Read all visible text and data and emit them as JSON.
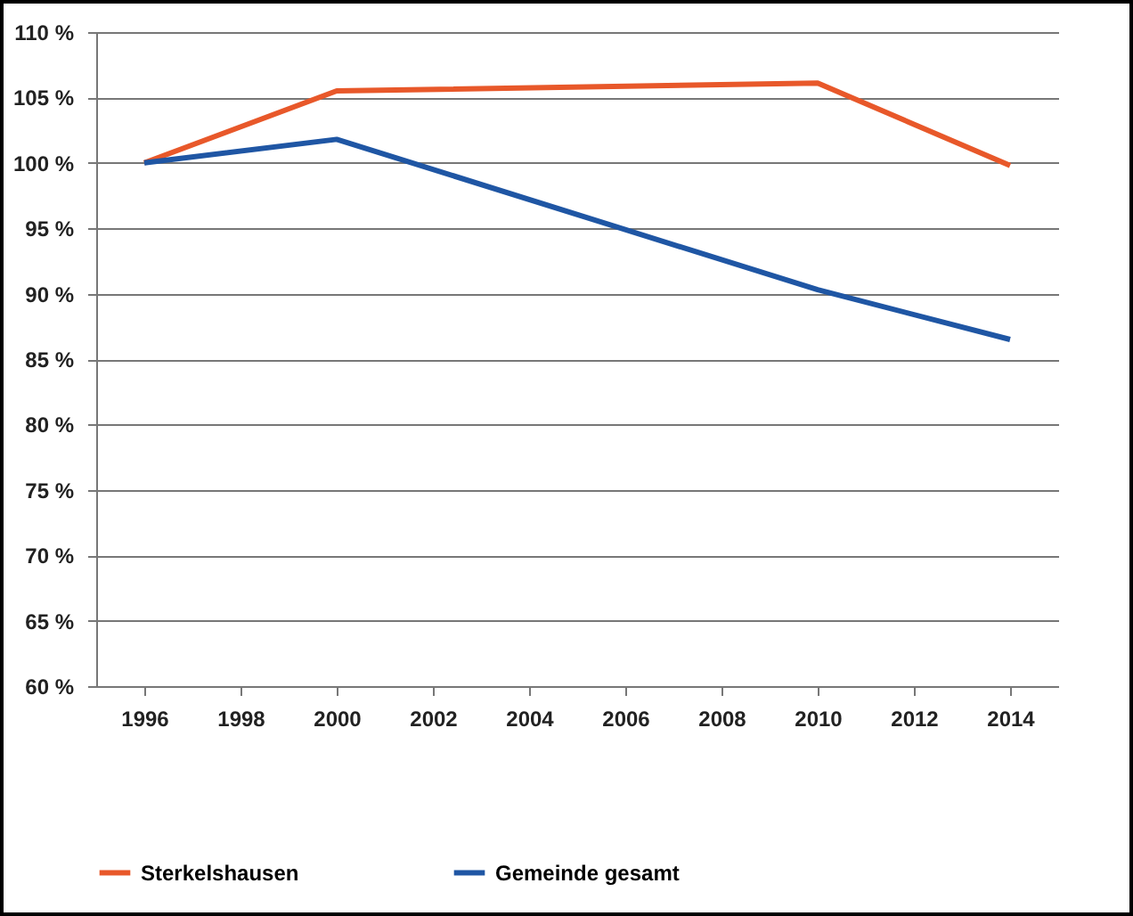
{
  "chart_data": {
    "type": "line",
    "x": [
      1996,
      2000,
      2010,
      2014
    ],
    "series": [
      {
        "name": "Sterkelshausen",
        "color": "#e8582a",
        "values": [
          100,
          105.5,
          106.1,
          99.8
        ]
      },
      {
        "name": "Gemeinde gesamt",
        "color": "#1f56a4",
        "values": [
          100,
          101.8,
          90.3,
          86.5
        ]
      }
    ],
    "xlim": [
      1995,
      2015
    ],
    "xticks": [
      1996,
      1998,
      2000,
      2002,
      2004,
      2006,
      2008,
      2010,
      2012,
      2014
    ],
    "ylim": [
      60,
      110
    ],
    "yticks": [
      {
        "value": 60,
        "label": "60 %"
      },
      {
        "value": 65,
        "label": "65 %"
      },
      {
        "value": 70,
        "label": "70 %"
      },
      {
        "value": 75,
        "label": "75 %"
      },
      {
        "value": 80,
        "label": "80 %"
      },
      {
        "value": 85,
        "label": "85 %"
      },
      {
        "value": 90,
        "label": "90 %"
      },
      {
        "value": 95,
        "label": "95 %"
      },
      {
        "value": 100,
        "label": "100 %"
      },
      {
        "value": 105,
        "label": "105 %"
      },
      {
        "value": 110,
        "label": "110 %"
      }
    ],
    "grid": "y",
    "legend": "bottom",
    "marker": "none",
    "line_style": "solid"
  }
}
